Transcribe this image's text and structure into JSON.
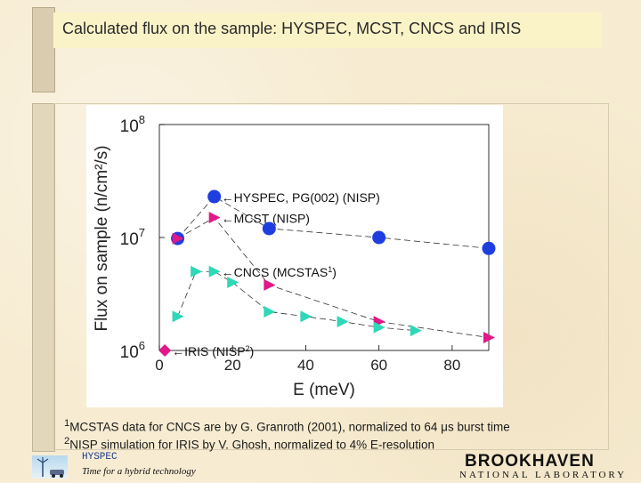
{
  "title": "Calculated flux on the sample: HYSPEC, MCST, CNCS and IRIS",
  "footnotes": [
    {
      "sup": "1",
      "text": "MCSTAS data for CNCS are by G. Granroth (2001), normalized to 64 μs burst time"
    },
    {
      "sup": "2",
      "text": "NISP simulation for IRIS by V. Ghosh, normalized to 4% E-resolution"
    }
  ],
  "footer": {
    "project": "HYSPEC",
    "tagline": "Time for a hybrid technology",
    "lab_name": "BROOKHAVEN",
    "lab_sub": "NATIONAL LABORATORY"
  },
  "colors": {
    "hyspec": "#1f3ee0",
    "mcst": "#e01888",
    "cncs": "#2ed8b8",
    "iris": "#e01888"
  },
  "chart_data": {
    "type": "scatter",
    "xlabel": "E (meV)",
    "ylabel": "Flux on sample (n/cm²/s)",
    "xlim": [
      0,
      90
    ],
    "ylim": [
      1000000,
      100000000
    ],
    "yscale": "log",
    "xticks": [
      "0",
      "20",
      "40",
      "60",
      "80"
    ],
    "yticks": [
      {
        "base": "10",
        "exp": "8",
        "value": 100000000
      },
      {
        "base": "10",
        "exp": "7",
        "value": 10000000
      },
      {
        "base": "10",
        "exp": "6",
        "value": 1000000
      }
    ],
    "series": [
      {
        "name": "HYSPEC, PG(002) (NISP)",
        "marker": "circle",
        "color": "#1f3ee0",
        "x": [
          5,
          15,
          30,
          60,
          90
        ],
        "y": [
          9800000,
          23000000,
          12000000,
          10000000,
          8000000
        ]
      },
      {
        "name": "MCST (NISP)",
        "marker": "triangle-right",
        "color": "#e01888",
        "x": [
          5,
          15,
          30,
          60,
          90
        ],
        "y": [
          9800000,
          15000000,
          3800000,
          1800000,
          1300000
        ]
      },
      {
        "name": "CNCS (MCSTAS1)",
        "marker": "triangle-right",
        "color": "#2ed8b8",
        "x": [
          5,
          10,
          15,
          20,
          30,
          40,
          50,
          60,
          70
        ],
        "y": [
          2000000,
          5000000,
          5000000,
          4000000,
          2200000,
          2000000,
          1800000,
          1600000,
          1500000
        ]
      },
      {
        "name": "IRIS (NISP2)",
        "marker": "diamond",
        "color": "#e01888",
        "x": [
          1.5
        ],
        "y": [
          1000000
        ]
      }
    ],
    "annotations": [
      {
        "series": 0,
        "point": 1,
        "prefix": "←",
        "text": "HYSPEC, PG(002) (NISP)",
        "sup": ""
      },
      {
        "series": 1,
        "point": 1,
        "prefix": "←",
        "text": "MCST (NISP)",
        "sup": ""
      },
      {
        "series": 2,
        "point": 2,
        "prefix": "←",
        "text": "CNCS (MCSTAS",
        "sup": "1",
        "suffix": ")"
      },
      {
        "series": 3,
        "point": 0,
        "prefix": "←",
        "text": "IRIS (NISP",
        "sup": "2",
        "suffix": ")"
      }
    ]
  }
}
